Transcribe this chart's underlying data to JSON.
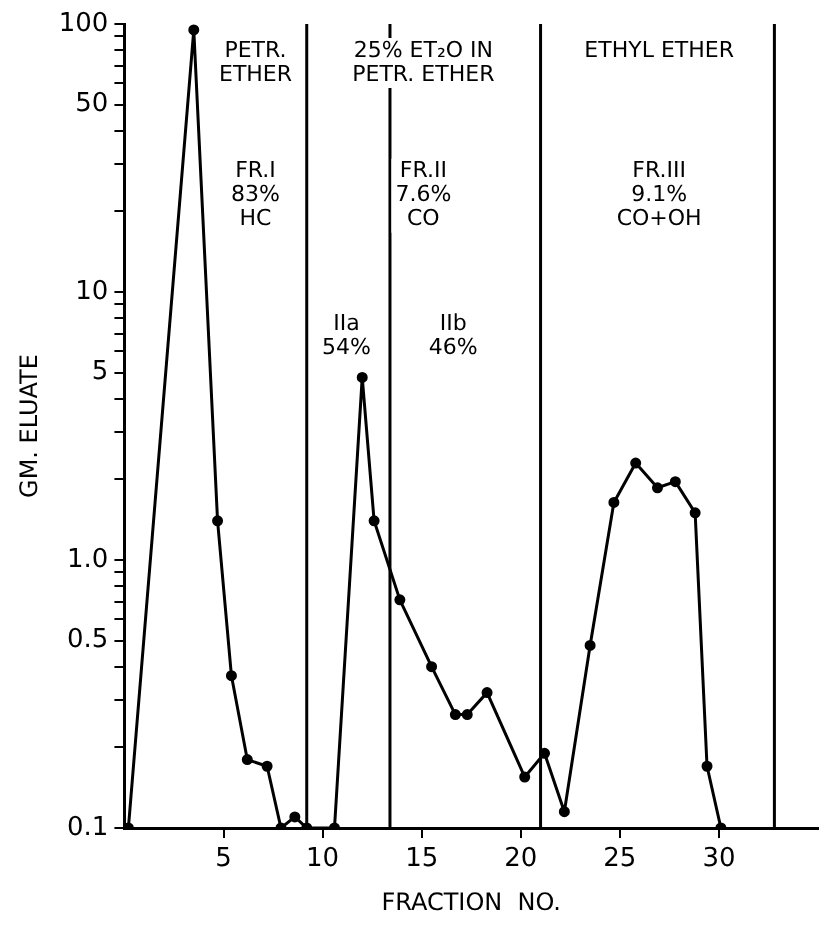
{
  "chart_data": {
    "type": "line",
    "xlabel": "FRACTION  NO.",
    "ylabel": "GM. ELUATE",
    "series": [
      {
        "color": "#000000",
        "x": [
          0.2,
          3.5,
          4.7,
          5.4,
          6.2,
          7.2,
          7.9,
          8.6,
          9.2,
          10.6,
          12.0,
          12.6,
          13.9,
          15.5,
          16.7,
          17.3,
          18.3,
          20.2,
          21.2,
          22.2,
          23.5,
          24.7,
          25.8,
          26.9,
          27.8,
          28.8,
          29.4,
          30.1
        ],
        "values": [
          0.1,
          95,
          1.4,
          0.37,
          0.18,
          0.17,
          0.1,
          0.11,
          0.1,
          0.1,
          4.8,
          1.4,
          0.71,
          0.4,
          0.265,
          0.265,
          0.32,
          0.155,
          0.19,
          0.115,
          0.48,
          1.64,
          2.3,
          1.86,
          1.96,
          1.5,
          0.17,
          0.1
        ]
      }
    ],
    "xlim": [
      0,
      35
    ],
    "xticks": [
      5,
      10,
      15,
      20,
      25,
      30
    ],
    "ylim": [
      0.1,
      100
    ],
    "log": "y",
    "yticks": [
      {
        "value": 0.1,
        "label": "0.1"
      },
      {
        "value": 0.2,
        "label": null
      },
      {
        "value": 0.3,
        "label": null
      },
      {
        "value": 0.4,
        "label": null
      },
      {
        "value": 0.5,
        "label": "0.5"
      },
      {
        "value": 0.6,
        "label": null
      },
      {
        "value": 0.7,
        "label": null
      },
      {
        "value": 0.8,
        "label": null
      },
      {
        "value": 0.9,
        "label": null
      },
      {
        "value": 1,
        "label": "1.0"
      },
      {
        "value": 2,
        "label": null
      },
      {
        "value": 3,
        "label": null
      },
      {
        "value": 4,
        "label": null
      },
      5,
      {
        "value": 6,
        "label": null
      },
      {
        "value": 7,
        "label": null
      },
      {
        "value": 8,
        "label": null
      },
      {
        "value": 9,
        "label": null
      },
      10,
      {
        "value": 20,
        "label": null
      },
      {
        "value": 30,
        "label": null
      },
      {
        "value": 40,
        "label": null
      },
      50,
      {
        "value": 60,
        "label": null
      },
      {
        "value": 70,
        "label": null
      },
      {
        "value": 80,
        "label": null
      },
      {
        "value": 90,
        "label": null
      },
      100
    ],
    "grid": false,
    "marker": "circle",
    "line_style": "solid",
    "legend": false,
    "ref_lines": [
      {
        "axis": "x",
        "value": 9.2,
        "color": "#000000"
      },
      {
        "axis": "x",
        "value": 13.4,
        "color": "#000000"
      },
      {
        "axis": "x",
        "value": 21,
        "color": "#000000"
      },
      {
        "axis": "x",
        "value": 32.8,
        "color": "#000000"
      }
    ],
    "annotations": [
      "PETR.\nETHER",
      "FR.I\n83%\nHC",
      "25% ET₂O IN\nPETR. ETHER",
      "FR.II\n7.6%\nCO",
      "IIa\n54%",
      "IIb\n46%",
      "ETHYL ETHER",
      "FR.III\n9.1%\nCO+OH"
    ]
  }
}
